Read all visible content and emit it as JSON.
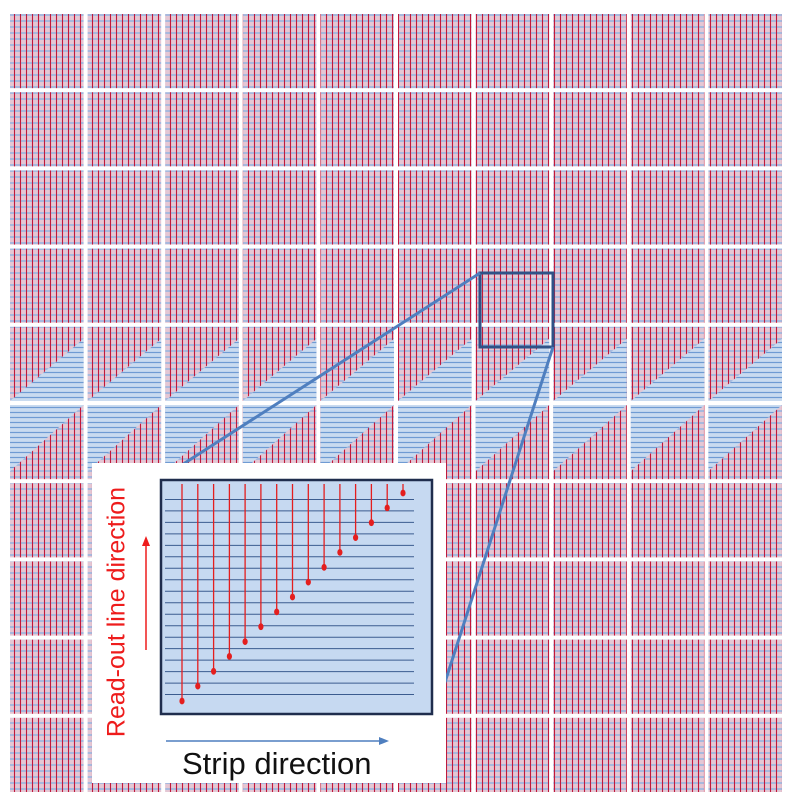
{
  "diagram": {
    "labels": {
      "strip_direction": "Strip direction",
      "readout_direction": "Read-out  line direction"
    },
    "colors": {
      "background": "#ffffff",
      "tile_fill": "#ead1dc",
      "blue_strip": "#8db3e2",
      "red_line": "#c0183c",
      "diagonal_band": "#a9c6e8",
      "zoom_box": "#2f5287",
      "callout_line": "#4f7fbf",
      "inset_fill": "#c6d9f1",
      "inset_border": "#1f2d4d",
      "inset_strip": "#3b5c8f",
      "inset_readout": "#e41e1e",
      "arrow_red": "#ee1c1c",
      "arrow_blue": "#4f7fbf"
    },
    "grid": {
      "columns": 10,
      "rows": 10
    },
    "inset": {
      "readout_line_count": 15,
      "strip_line_count": 18
    }
  }
}
